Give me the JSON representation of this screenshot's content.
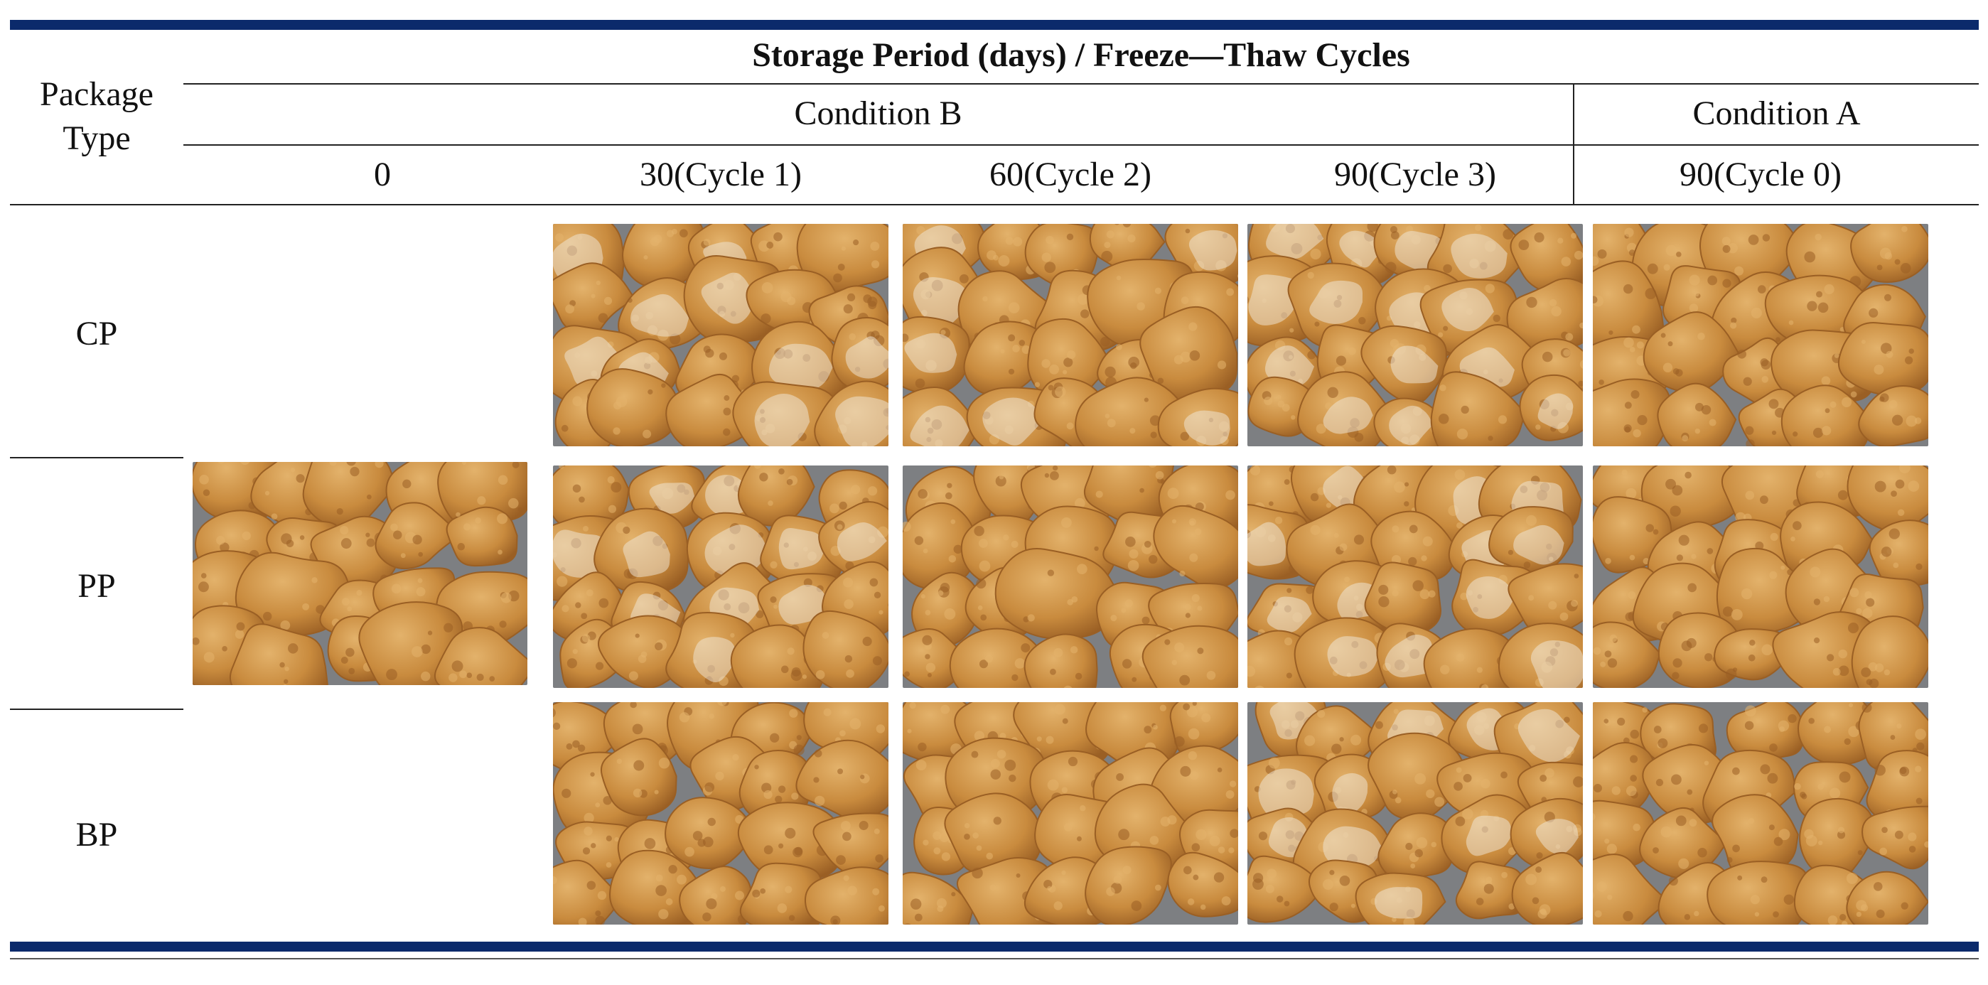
{
  "table": {
    "row_header": "Package\nType",
    "top_header": "Storage Period (days) / Freeze—Thaw Cycles",
    "groups": [
      {
        "label": "Condition B"
      },
      {
        "label": "Condition A"
      }
    ],
    "columns": [
      {
        "label": "0"
      },
      {
        "label": "30(Cycle 1)"
      },
      {
        "label": "60(Cycle 2)"
      },
      {
        "label": "90(Cycle 3)"
      },
      {
        "label": "90(Cycle 0)"
      }
    ],
    "rows": [
      {
        "label": "CP"
      },
      {
        "label": "PP"
      },
      {
        "label": "BP"
      }
    ]
  },
  "colors": {
    "rule": "#0b2a6b",
    "tray": "#7d7f82",
    "nugget_light": "#e3b26b",
    "nugget_mid": "#c98b3e",
    "nugget_dark": "#9a5f24",
    "frost": "#efe7d9"
  }
}
